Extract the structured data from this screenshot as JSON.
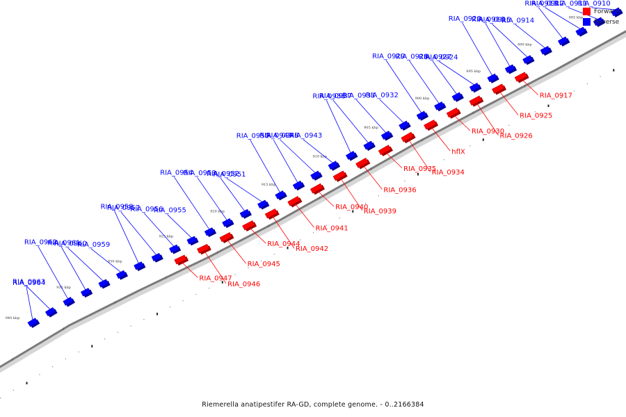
{
  "legend": {
    "forward_label": "Forward",
    "reverse_label": "Reverse",
    "forward_color": "#ff0000",
    "reverse_color": "#0000ff"
  },
  "caption": "Riemerella anatipestifer RA-GD, complete genome. - 0..2166384",
  "ticks": [
    "885 kbp",
    "890 kbp",
    "895 kbp",
    "900 kbp",
    "905 kbp",
    "910 kbp",
    "915 kbp",
    "920 kbp",
    "925 kbp",
    "930 kbp",
    "935 kbp",
    "940 kbp"
  ],
  "reverse_genes": [
    "RIA_0910",
    "RIA_0911",
    "RIA_0912",
    "RIA_0913",
    "RIA_0914",
    "RIA_0915",
    "RIA_0916",
    "RIA_0920",
    "RIA_0924",
    "RIA_0927",
    "RIA_0928",
    "RIA_0929",
    "RIA_0932",
    "RIA_0933",
    "RIA_0937",
    "RIA_0938",
    "RIA_0943",
    "RIA_0948",
    "RIA_0949",
    "RIA_0950",
    "RIA_0951",
    "RIA_0952",
    "RIA_0953",
    "RIA_0954",
    "RIA_0955",
    "RIA_0956",
    "RIA_0957",
    "RIA_0958",
    "RIA_0959",
    "RIA_0960",
    "RIA_0961",
    "RIA_0962",
    "RIA_0963",
    "RIA_0964"
  ],
  "forward_genes": [
    "RIA_0917",
    "RIA_0925",
    "RIA_0926",
    "RIA_0930",
    "hflX",
    "RIA_0934",
    "RIA_0935",
    "RIA_0936",
    "RIA_0939",
    "RIA_0940",
    "RIA_0941",
    "RIA_0942",
    "RIA_0944",
    "RIA_0945",
    "RIA_0946",
    "RIA_0947"
  ]
}
